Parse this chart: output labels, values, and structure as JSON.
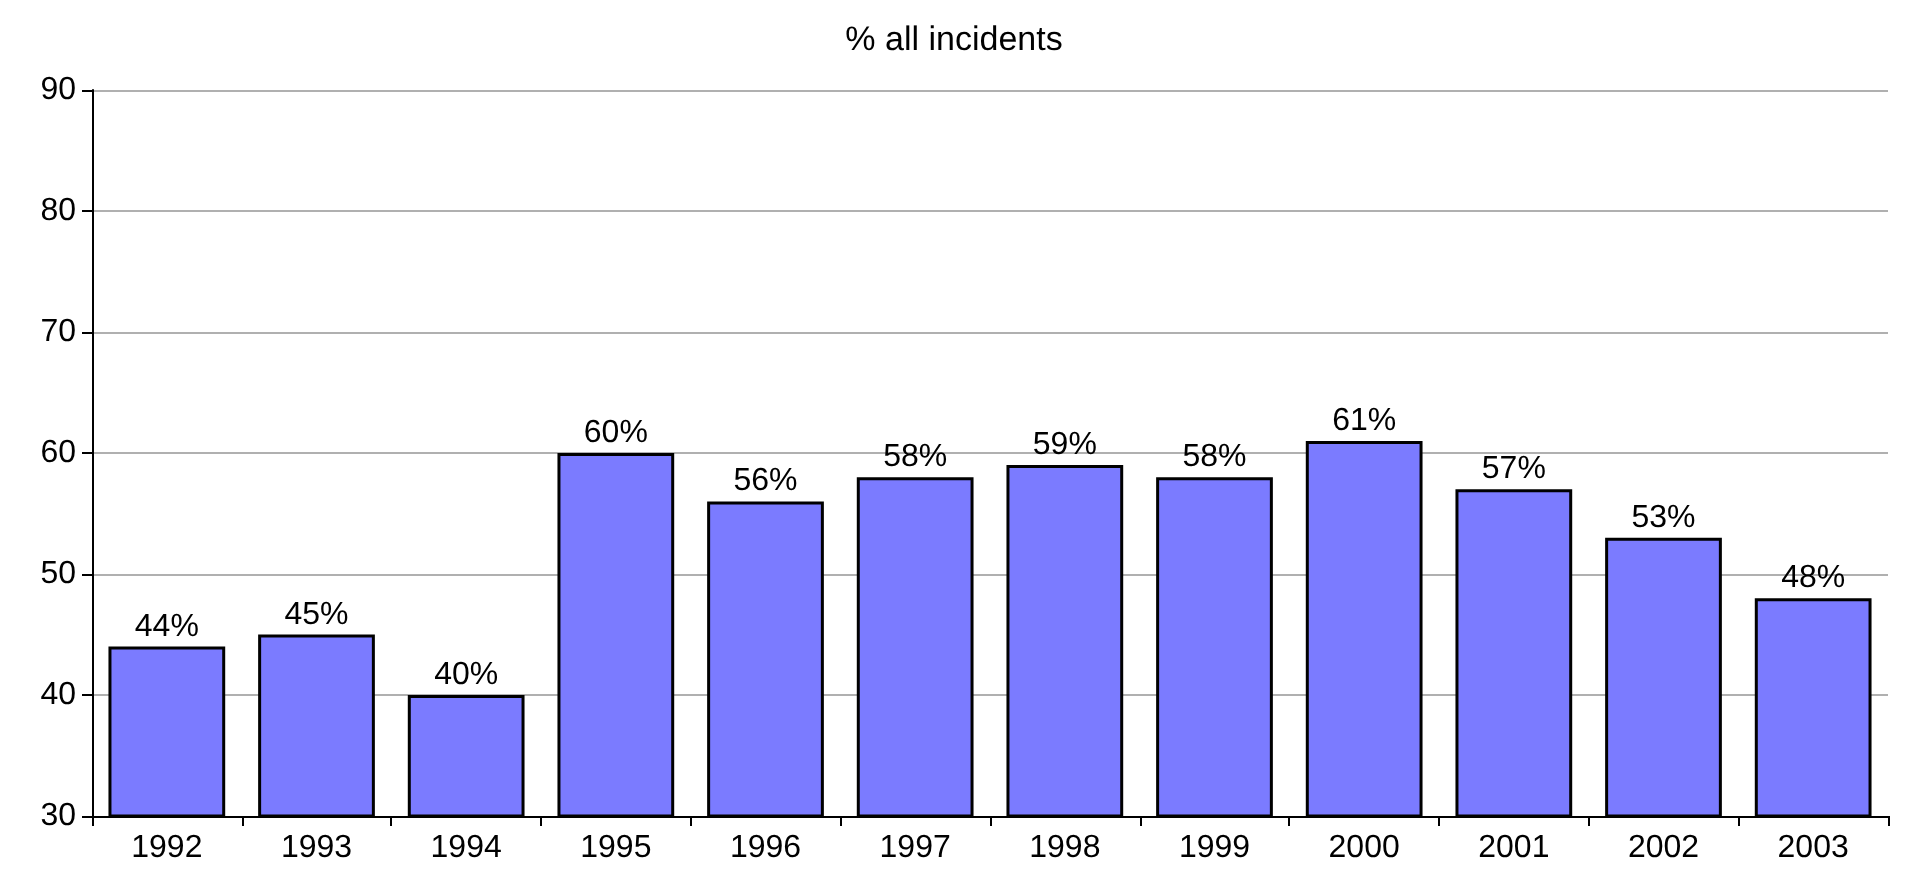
{
  "chart_data": {
    "type": "bar",
    "title": "% all incidents",
    "categories": [
      "1992",
      "1993",
      "1994",
      "1995",
      "1996",
      "1997",
      "1998",
      "1999",
      "2000",
      "2001",
      "2002",
      "2003"
    ],
    "values": [
      44,
      45,
      40,
      60,
      56,
      58,
      59,
      58,
      61,
      57,
      53,
      48
    ],
    "value_labels": [
      "44%",
      "45%",
      "40%",
      "60%",
      "56%",
      "58%",
      "59%",
      "58%",
      "61%",
      "57%",
      "53%",
      "48%"
    ],
    "color": "#7b7bff",
    "ylim": [
      30,
      90
    ],
    "yticks": [
      30,
      40,
      50,
      60,
      70,
      80,
      90
    ],
    "grid": "y"
  }
}
